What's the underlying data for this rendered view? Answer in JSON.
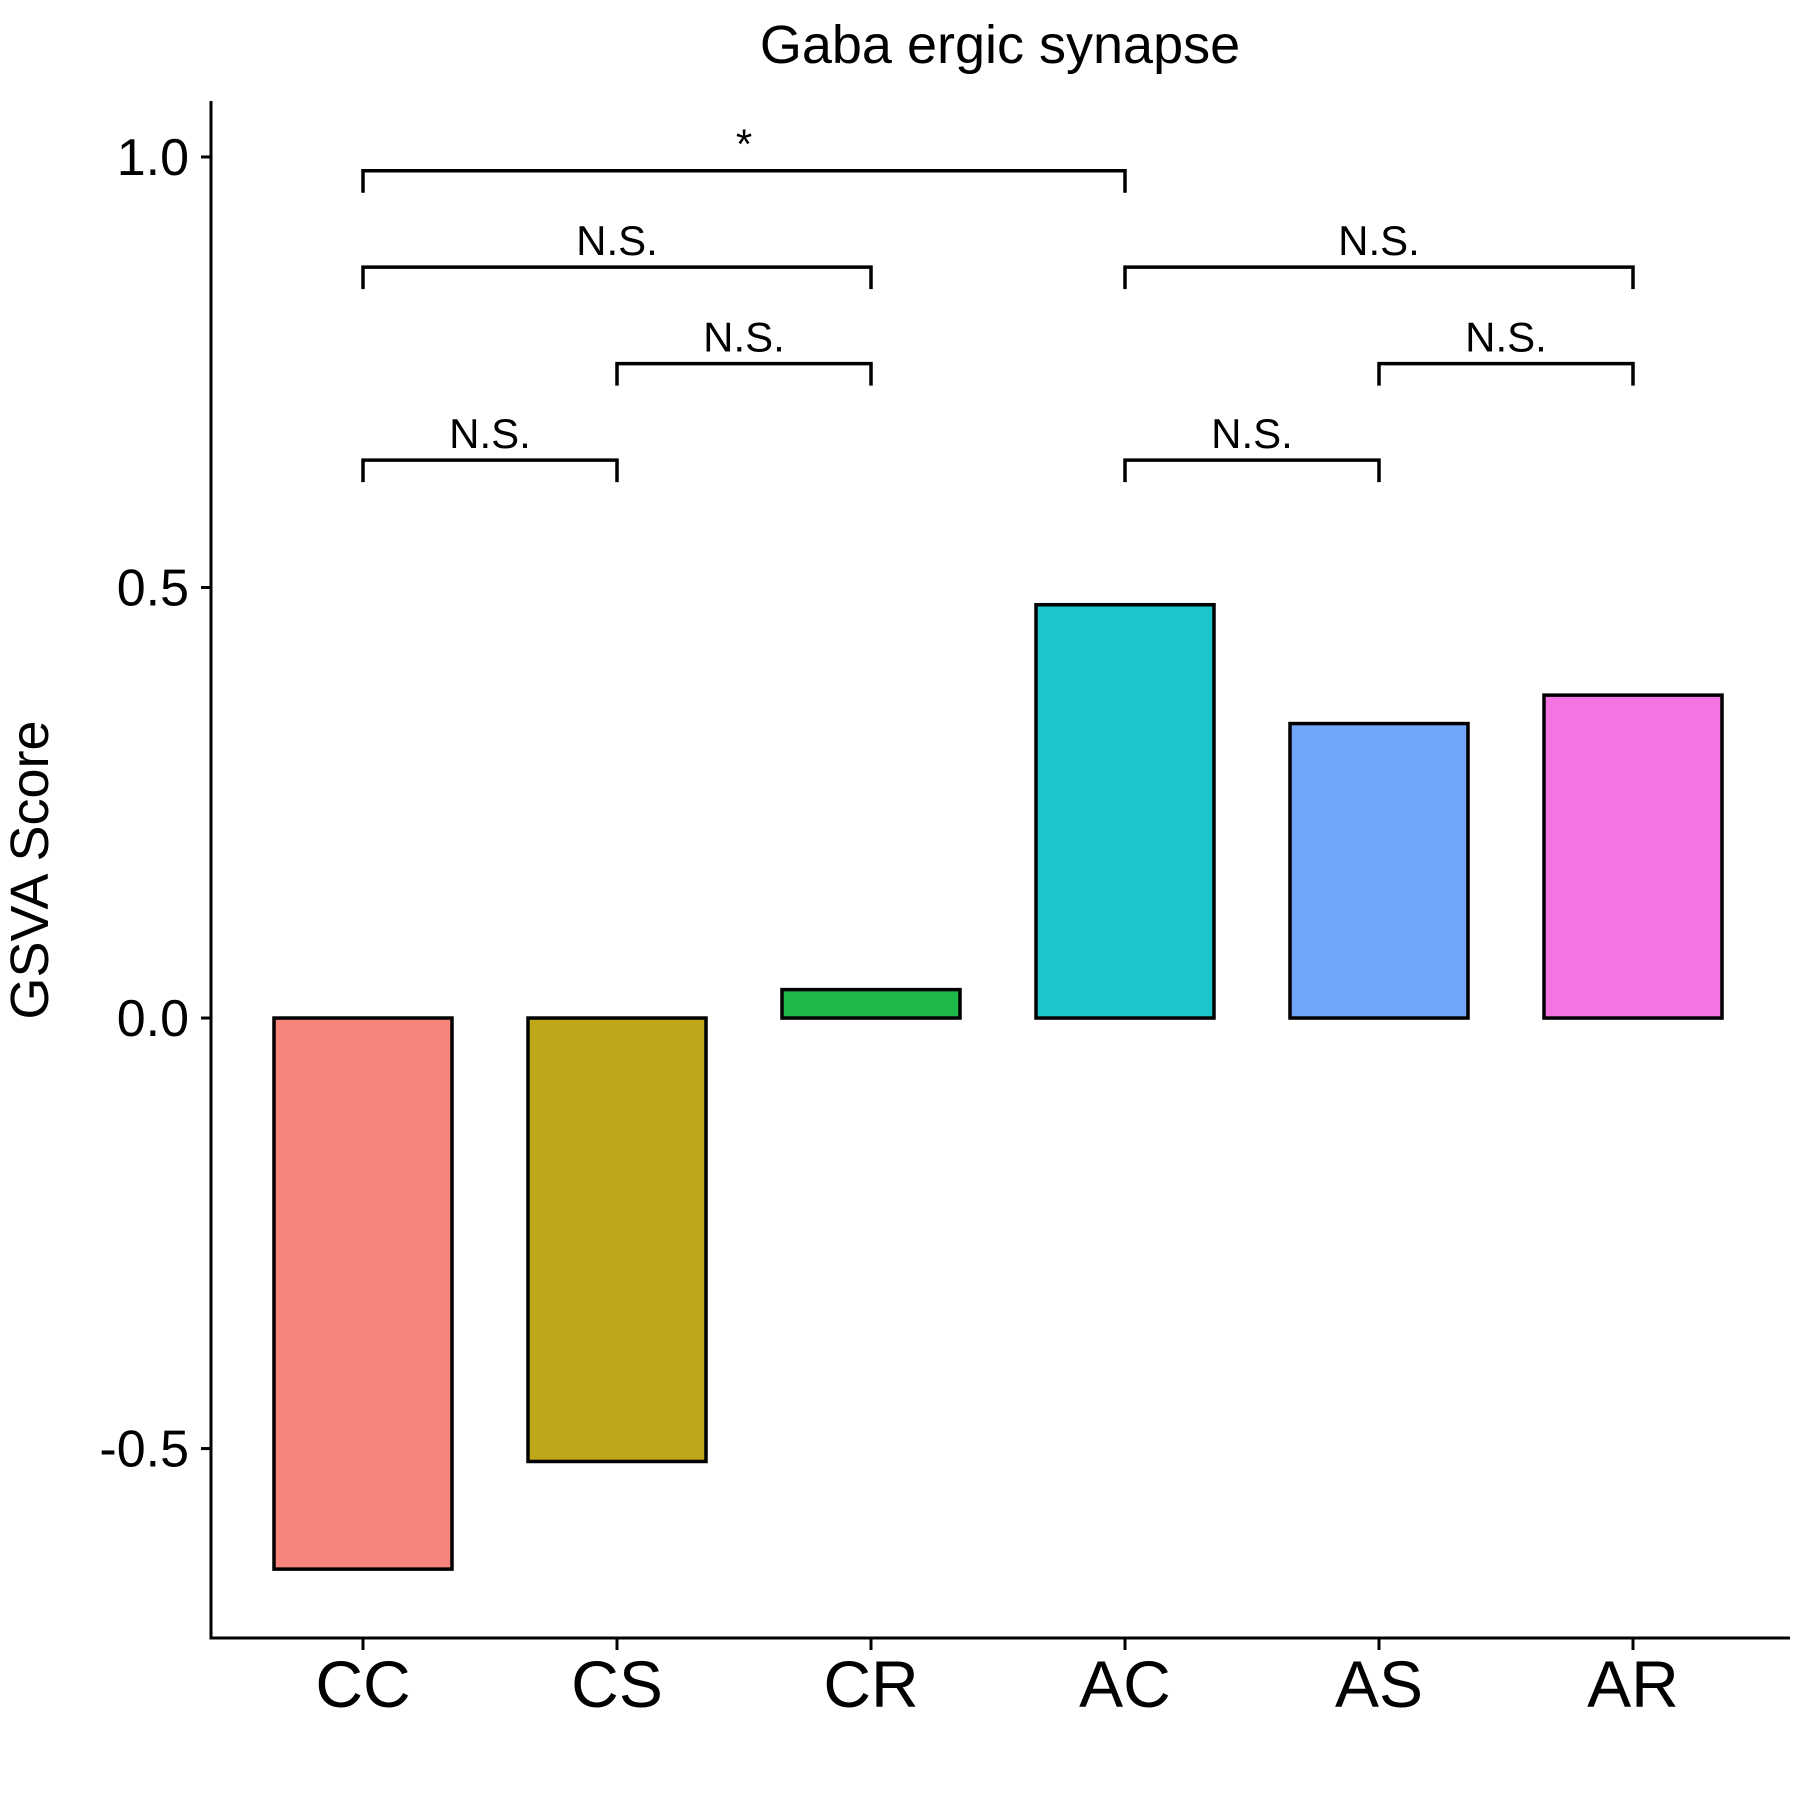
{
  "chart_data": {
    "type": "bar",
    "title": "Gaba ergic synapse",
    "xlabel": "",
    "ylabel": "GSVA Score",
    "categories": [
      "CC",
      "CS",
      "CR",
      "AC",
      "AS",
      "AR"
    ],
    "values": [
      -0.64,
      -0.515,
      0.033,
      0.48,
      0.342,
      0.375
    ],
    "colors": [
      "#F8857C",
      "#BEA719",
      "#1DBA4A",
      "#1DC5CA",
      "#72A6FC",
      "#F475E2"
    ],
    "ylim": [
      -0.72,
      1.065
    ],
    "yticks": [
      -0.5,
      0.0,
      0.5,
      1.0
    ],
    "ytick_labels": [
      "-0.5",
      "0.0",
      "0.5",
      "1.0"
    ],
    "grid": false,
    "legend": "none",
    "comparisons": [
      {
        "from": "CC",
        "to": "CS",
        "label": "N.S.",
        "y": 0.648
      },
      {
        "from": "CS",
        "to": "CR",
        "label": "N.S.",
        "y": 0.76
      },
      {
        "from": "CC",
        "to": "CR",
        "label": "N.S.",
        "y": 0.872
      },
      {
        "from": "CC",
        "to": "AC",
        "label": "*",
        "y": 0.984
      },
      {
        "from": "AC",
        "to": "AS",
        "label": "N.S.",
        "y": 0.648
      },
      {
        "from": "AS",
        "to": "AR",
        "label": "N.S.",
        "y": 0.76
      },
      {
        "from": "AC",
        "to": "AR",
        "label": "N.S.",
        "y": 0.872
      }
    ]
  }
}
